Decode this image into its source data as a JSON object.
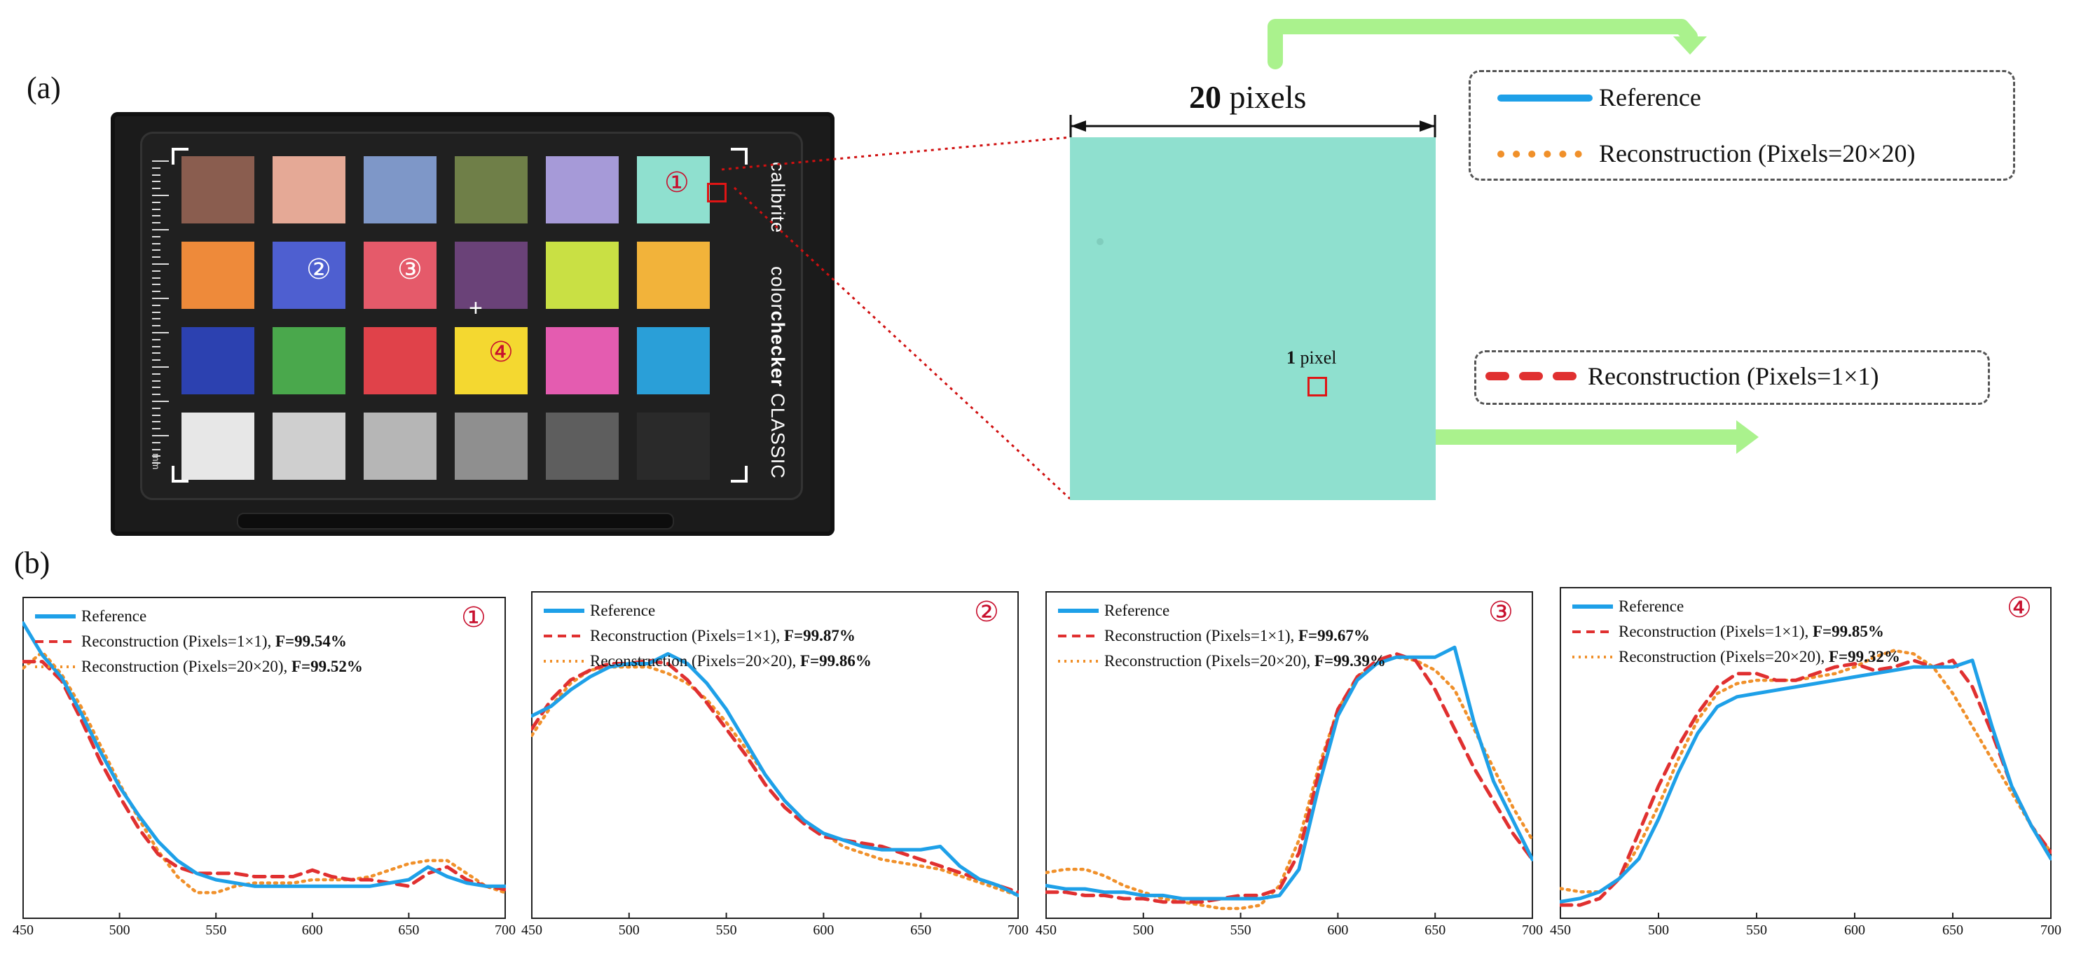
{
  "panel_a_label": "(a)",
  "panel_b_label": "(b)",
  "card": {
    "brand": "calibrite",
    "product_bold": "checker",
    "product_pre": "color",
    "product_post": " CLASSIC",
    "ruler_unit": "mm",
    "patch_colors": [
      [
        "#8a5d4f",
        "#e5a996",
        "#7e97c8",
        "#6f7f48",
        "#a69ad8",
        "#8fe0cf"
      ],
      [
        "#ee8a3a",
        "#4e5fd0",
        "#e55a6a",
        "#6a4278",
        "#c9e044",
        "#f2b33a"
      ],
      [
        "#2c41b0",
        "#4aa84c",
        "#e0424a",
        "#f4d830",
        "#e45cb0",
        "#2a9fd8"
      ],
      [
        "#e7e7e7",
        "#cfcfcf",
        "#b6b6b6",
        "#8f8f8f",
        "#5e5e5e",
        "#2a2a2a"
      ]
    ],
    "markers": [
      "①",
      "②",
      "③",
      "④"
    ]
  },
  "zoom": {
    "size_label_bold": "20",
    "size_label_rest": " pixels",
    "pixel_label_bold": "1",
    "pixel_label_rest": " pixel",
    "patch_color": "#8fe0cf"
  },
  "legend_top": {
    "reference": "Reference",
    "recon_20": "Reconstruction (Pixels=20×20)",
    "recon_1": "Reconstruction (Pixels=1×1)"
  },
  "colors": {
    "reference": "#1ea0e8",
    "recon_1": "#e03030",
    "recon_20": "#f0902a",
    "arrow": "#aaf28d",
    "marker": "#c8102e"
  },
  "chart_data": [
    {
      "type": "line",
      "marker": "①",
      "xlim": [
        450,
        700
      ],
      "xticks": [
        "450",
        "500",
        "550",
        "600",
        "650",
        "700"
      ],
      "legend": [
        {
          "name": "Reference",
          "metric": ""
        },
        {
          "name": "Reconstruction (Pixels=1×1),",
          "metric": "F=99.54%"
        },
        {
          "name": "Reconstruction (Pixels=20×20),",
          "metric": "F=99.52%"
        }
      ],
      "x": [
        450,
        460,
        470,
        480,
        490,
        500,
        510,
        520,
        530,
        540,
        550,
        560,
        570,
        580,
        590,
        600,
        610,
        620,
        630,
        640,
        650,
        660,
        670,
        680,
        690,
        700
      ],
      "series": [
        {
          "name": "Reference",
          "values": [
            0.92,
            0.82,
            0.75,
            0.64,
            0.52,
            0.41,
            0.32,
            0.24,
            0.18,
            0.14,
            0.12,
            0.11,
            0.1,
            0.1,
            0.1,
            0.1,
            0.1,
            0.1,
            0.1,
            0.11,
            0.12,
            0.16,
            0.13,
            0.11,
            0.1,
            0.1
          ]
        },
        {
          "name": "Reconstruction (Pixels=1×1)",
          "values": [
            0.8,
            0.8,
            0.74,
            0.62,
            0.49,
            0.38,
            0.28,
            0.2,
            0.16,
            0.14,
            0.14,
            0.14,
            0.13,
            0.13,
            0.13,
            0.15,
            0.13,
            0.12,
            0.12,
            0.11,
            0.1,
            0.14,
            0.16,
            0.12,
            0.1,
            0.09
          ]
        },
        {
          "name": "Reconstruction (Pixels=20×20)",
          "values": [
            0.78,
            0.83,
            0.76,
            0.66,
            0.54,
            0.42,
            0.31,
            0.21,
            0.13,
            0.08,
            0.08,
            0.1,
            0.11,
            0.11,
            0.11,
            0.12,
            0.12,
            0.12,
            0.13,
            0.15,
            0.17,
            0.18,
            0.18,
            0.14,
            0.1,
            0.08
          ]
        }
      ],
      "ylim": [
        0,
        1
      ]
    },
    {
      "type": "line",
      "marker": "②",
      "xlim": [
        450,
        700
      ],
      "xticks": [
        "450",
        "500",
        "550",
        "600",
        "650",
        "700"
      ],
      "legend": [
        {
          "name": "Reference",
          "metric": ""
        },
        {
          "name": "Reconstruction (Pixels=1×1),",
          "metric": "F=99.87%"
        },
        {
          "name": "Reconstruction (Pixels=20×20),",
          "metric": "F=99.86%"
        }
      ],
      "x": [
        450,
        460,
        470,
        480,
        490,
        500,
        510,
        520,
        530,
        540,
        550,
        560,
        570,
        580,
        590,
        600,
        610,
        620,
        630,
        640,
        650,
        660,
        670,
        680,
        690,
        700
      ],
      "series": [
        {
          "name": "Reference",
          "values": [
            0.62,
            0.65,
            0.7,
            0.74,
            0.77,
            0.78,
            0.78,
            0.81,
            0.78,
            0.72,
            0.64,
            0.54,
            0.44,
            0.36,
            0.3,
            0.26,
            0.24,
            0.22,
            0.21,
            0.21,
            0.21,
            0.22,
            0.16,
            0.12,
            0.1,
            0.07
          ]
        },
        {
          "name": "Reconstruction (Pixels=1×1)",
          "values": [
            0.58,
            0.67,
            0.73,
            0.76,
            0.78,
            0.78,
            0.79,
            0.78,
            0.73,
            0.66,
            0.58,
            0.5,
            0.41,
            0.34,
            0.29,
            0.25,
            0.24,
            0.23,
            0.22,
            0.2,
            0.18,
            0.16,
            0.14,
            0.12,
            0.1,
            0.08
          ]
        },
        {
          "name": "Reconstruction (Pixels=20×20)",
          "values": [
            0.56,
            0.65,
            0.72,
            0.76,
            0.77,
            0.77,
            0.77,
            0.75,
            0.72,
            0.67,
            0.6,
            0.52,
            0.44,
            0.36,
            0.3,
            0.26,
            0.22,
            0.2,
            0.18,
            0.17,
            0.16,
            0.15,
            0.13,
            0.11,
            0.09,
            0.07
          ]
        }
      ],
      "ylim": [
        0,
        1
      ]
    },
    {
      "type": "line",
      "marker": "③",
      "xlim": [
        450,
        700
      ],
      "xticks": [
        "450",
        "500",
        "550",
        "600",
        "650",
        "700"
      ],
      "legend": [
        {
          "name": "Reference",
          "metric": ""
        },
        {
          "name": "Reconstruction (Pixels=1×1),",
          "metric": "F=99.67%"
        },
        {
          "name": "Reconstruction (Pixels=20×20),",
          "metric": "F=99.39%"
        }
      ],
      "x": [
        450,
        460,
        470,
        480,
        490,
        500,
        510,
        520,
        530,
        540,
        550,
        560,
        570,
        580,
        590,
        600,
        610,
        620,
        630,
        640,
        650,
        660,
        670,
        680,
        690,
        700
      ],
      "series": [
        {
          "name": "Reference",
          "values": [
            0.1,
            0.09,
            0.09,
            0.08,
            0.08,
            0.07,
            0.07,
            0.06,
            0.06,
            0.06,
            0.06,
            0.06,
            0.07,
            0.15,
            0.4,
            0.62,
            0.73,
            0.78,
            0.8,
            0.8,
            0.8,
            0.83,
            0.6,
            0.42,
            0.3,
            0.18
          ]
        },
        {
          "name": "Reconstruction (Pixels=1×1)",
          "values": [
            0.08,
            0.08,
            0.07,
            0.07,
            0.06,
            0.06,
            0.05,
            0.05,
            0.05,
            0.06,
            0.07,
            0.07,
            0.09,
            0.2,
            0.44,
            0.64,
            0.74,
            0.79,
            0.81,
            0.79,
            0.7,
            0.58,
            0.46,
            0.36,
            0.26,
            0.18
          ]
        },
        {
          "name": "Reconstruction (Pixels=20×20)",
          "values": [
            0.14,
            0.15,
            0.15,
            0.13,
            0.1,
            0.08,
            0.06,
            0.05,
            0.04,
            0.03,
            0.03,
            0.04,
            0.1,
            0.24,
            0.46,
            0.64,
            0.74,
            0.78,
            0.8,
            0.79,
            0.76,
            0.7,
            0.58,
            0.46,
            0.34,
            0.24
          ]
        }
      ],
      "ylim": [
        0,
        1
      ]
    },
    {
      "type": "line",
      "marker": "④",
      "xlim": [
        450,
        700
      ],
      "xticks": [
        "450",
        "500",
        "550",
        "600",
        "650",
        "700"
      ],
      "legend": [
        {
          "name": "Reference",
          "metric": ""
        },
        {
          "name": "Reconstruction (Pixels=1×1),",
          "metric": "F=99.85%"
        },
        {
          "name": "Reconstruction (Pixels=20×20),",
          "metric": "F=99.32%"
        }
      ],
      "x": [
        450,
        460,
        470,
        480,
        490,
        500,
        510,
        520,
        530,
        540,
        550,
        560,
        570,
        580,
        590,
        600,
        610,
        620,
        630,
        640,
        650,
        660,
        670,
        680,
        690,
        700
      ],
      "series": [
        {
          "name": "Reference",
          "values": [
            0.05,
            0.06,
            0.08,
            0.12,
            0.18,
            0.3,
            0.44,
            0.56,
            0.64,
            0.67,
            0.68,
            0.69,
            0.7,
            0.71,
            0.72,
            0.73,
            0.74,
            0.75,
            0.76,
            0.76,
            0.76,
            0.78,
            0.58,
            0.4,
            0.28,
            0.18
          ]
        },
        {
          "name": "Reconstruction (Pixels=1×1)",
          "values": [
            0.04,
            0.04,
            0.06,
            0.12,
            0.26,
            0.4,
            0.52,
            0.62,
            0.7,
            0.74,
            0.74,
            0.72,
            0.72,
            0.74,
            0.76,
            0.77,
            0.75,
            0.76,
            0.78,
            0.76,
            0.78,
            0.7,
            0.56,
            0.4,
            0.28,
            0.2
          ]
        },
        {
          "name": "Reconstruction (Pixels=20×20)",
          "values": [
            0.09,
            0.08,
            0.08,
            0.12,
            0.22,
            0.34,
            0.48,
            0.6,
            0.68,
            0.71,
            0.72,
            0.72,
            0.72,
            0.73,
            0.74,
            0.76,
            0.79,
            0.81,
            0.8,
            0.76,
            0.68,
            0.58,
            0.48,
            0.38,
            0.28,
            0.2
          ]
        }
      ],
      "ylim": [
        0,
        1
      ]
    }
  ]
}
